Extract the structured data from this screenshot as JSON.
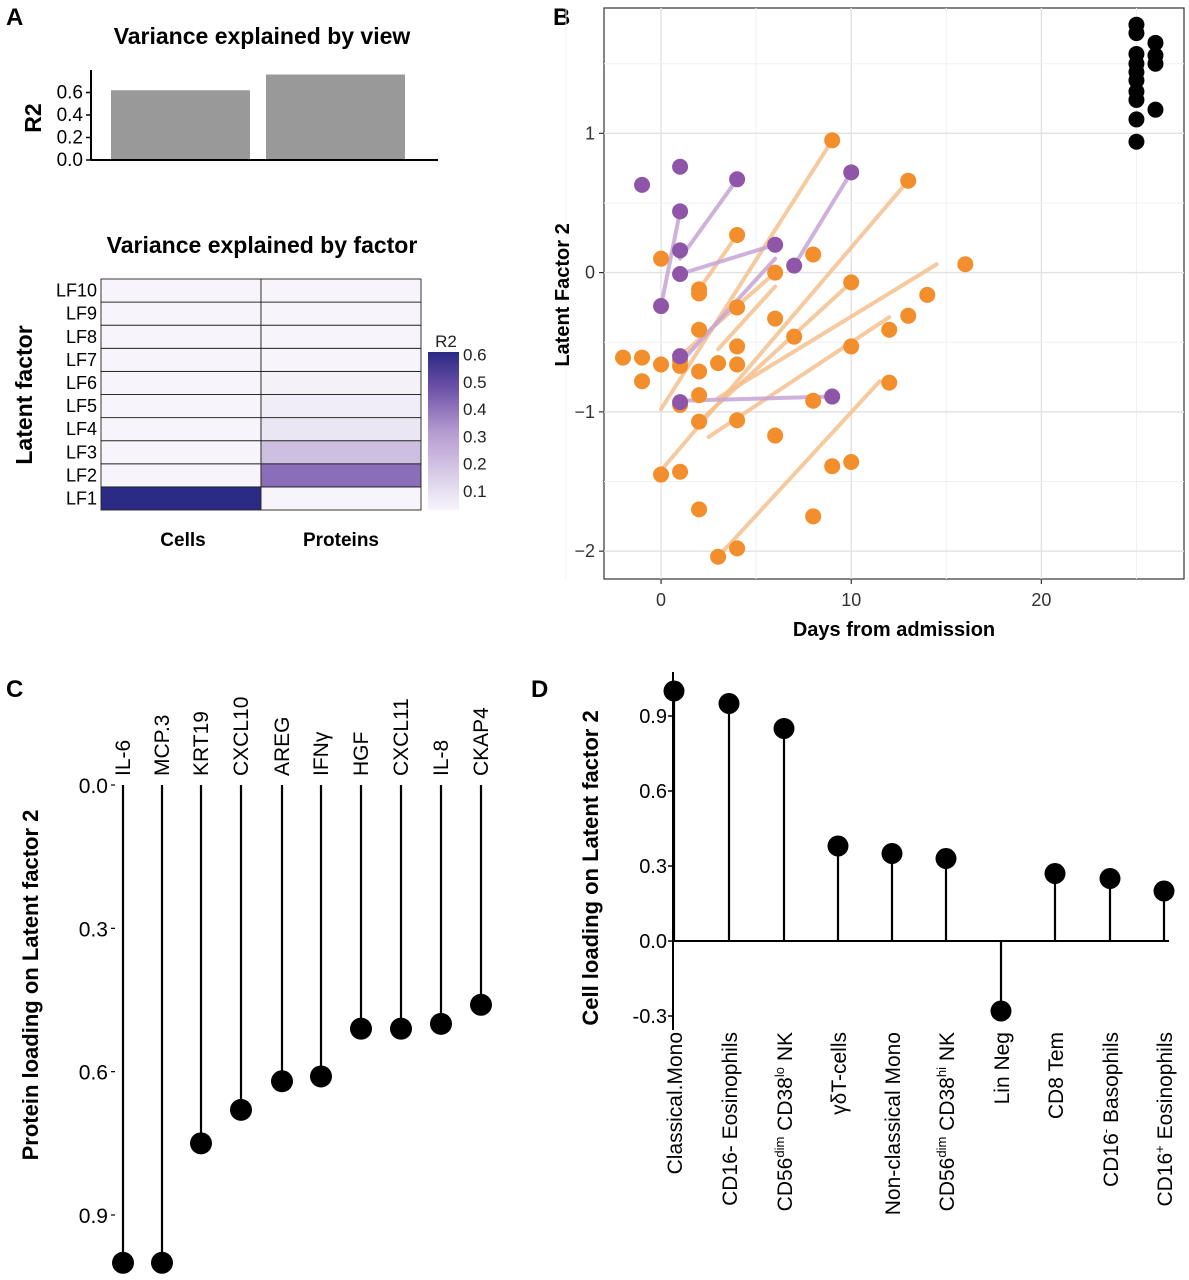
{
  "panels": {
    "a": "A",
    "b": "B",
    "c": "C",
    "d": "D"
  },
  "chart_data": [
    {
      "type": "bar",
      "title": "Variance explained by view",
      "ylabel": "R2",
      "categories": [
        "Cells",
        "Proteins"
      ],
      "values": [
        0.62,
        0.76
      ],
      "ylim": [
        0,
        0.8
      ],
      "yticks": [
        "0.0",
        "0.2",
        "0.4",
        "0.6"
      ],
      "colors": {
        "bar": "#999999"
      }
    },
    {
      "type": "heatmap",
      "title": "Variance explained by factor",
      "ylabel": "Latent factor",
      "x": [
        "Cells",
        "Proteins"
      ],
      "y": [
        "LF1",
        "LF2",
        "LF3",
        "LF4",
        "LF5",
        "LF6",
        "LF7",
        "LF8",
        "LF9",
        "LF10"
      ],
      "values": [
        [
          0.62,
          0.0
        ],
        [
          0.0,
          0.38
        ],
        [
          0.0,
          0.17
        ],
        [
          0.0,
          0.07
        ],
        [
          0.0,
          0.05
        ],
        [
          0.0,
          0.04
        ],
        [
          0.0,
          0.03
        ],
        [
          0.0,
          0.03
        ],
        [
          0.0,
          0.02
        ],
        [
          0.0,
          0.01
        ]
      ],
      "legend_title": "R2",
      "legend_ticks": [
        "0.1",
        "0.2",
        "0.3",
        "0.4",
        "0.5",
        "0.6"
      ],
      "scale": [
        0.03,
        0.62
      ],
      "colors": {
        "low": "#f7f5fb",
        "mid": "#8a6cb8",
        "high": "#2b2a85"
      }
    },
    {
      "type": "scatter",
      "xlabel": "Days from admission",
      "ylabel": "Latent Factor 2",
      "xlim": [
        -3,
        27.5
      ],
      "ylim": [
        -2.2,
        1.9
      ],
      "xticks": [
        "0",
        "10",
        "20"
      ],
      "yticks": [
        "−2",
        "−1",
        "0",
        "1"
      ],
      "grid": true,
      "colors": {
        "orange": "#f28e2b",
        "orange_line": "#f6c08f",
        "purple": "#8e55a8",
        "purple_line": "#c6a5d6",
        "black": "#000000"
      },
      "series": [
        {
          "color": "orange",
          "points": [
            [
              -2,
              -0.61
            ],
            [
              -1,
              -0.61
            ],
            [
              -1,
              -0.78
            ],
            [
              0,
              0.1
            ],
            [
              0,
              -0.66
            ],
            [
              0,
              -1.45
            ],
            [
              1,
              -0.63
            ],
            [
              1,
              -0.67
            ],
            [
              1,
              -0.95
            ],
            [
              1,
              -1.43
            ],
            [
              2,
              -0.12
            ],
            [
              2,
              -0.15
            ],
            [
              2,
              -0.41
            ],
            [
              2,
              -0.71
            ],
            [
              2,
              -0.88
            ],
            [
              2,
              -1.07
            ],
            [
              2,
              -1.7
            ],
            [
              3,
              -0.65
            ],
            [
              3,
              -2.04
            ],
            [
              4,
              0.27
            ],
            [
              4,
              -0.25
            ],
            [
              4,
              -0.53
            ],
            [
              4,
              -0.66
            ],
            [
              4,
              -1.06
            ],
            [
              4,
              -1.98
            ],
            [
              6,
              0.0
            ],
            [
              6,
              -0.33
            ],
            [
              6,
              -1.17
            ],
            [
              7,
              -0.46
            ],
            [
              8,
              0.13
            ],
            [
              8,
              -0.92
            ],
            [
              8,
              -1.75
            ],
            [
              9,
              0.95
            ],
            [
              9,
              -1.39
            ],
            [
              10,
              -0.07
            ],
            [
              10,
              -0.53
            ],
            [
              10,
              -1.36
            ],
            [
              12,
              -0.41
            ],
            [
              12,
              -0.79
            ],
            [
              13,
              0.66
            ],
            [
              13,
              -0.31
            ],
            [
              14,
              -0.16
            ],
            [
              16,
              0.06
            ]
          ]
        },
        {
          "color": "purple",
          "points": [
            [
              -1,
              0.63
            ],
            [
              0,
              -0.24
            ],
            [
              1,
              0.76
            ],
            [
              1,
              0.44
            ],
            [
              1,
              0.16
            ],
            [
              1,
              -0.01
            ],
            [
              1,
              -0.6
            ],
            [
              1,
              -0.93
            ],
            [
              4,
              0.67
            ],
            [
              6,
              0.2
            ],
            [
              7,
              0.05
            ],
            [
              9,
              -0.89
            ],
            [
              10,
              0.72
            ]
          ]
        },
        {
          "color": "black",
          "points": [
            [
              25,
              1.78
            ],
            [
              25,
              1.72
            ],
            [
              25,
              1.57
            ],
            [
              25,
              1.5
            ],
            [
              25,
              1.44
            ],
            [
              25,
              1.38
            ],
            [
              25,
              1.3
            ],
            [
              25,
              1.24
            ],
            [
              25,
              1.1
            ],
            [
              25,
              0.94
            ],
            [
              26,
              1.65
            ],
            [
              26,
              1.56
            ],
            [
              26,
              1.5
            ],
            [
              26,
              1.17
            ]
          ]
        }
      ],
      "trend_lines": [
        {
          "color": "orange_line",
          "from": [
            0,
            -0.98
          ],
          "to": [
            9,
            0.95
          ]
        },
        {
          "color": "orange_line",
          "from": [
            0,
            -1.42
          ],
          "to": [
            13,
            0.66
          ]
        },
        {
          "color": "orange_line",
          "from": [
            1,
            -0.6
          ],
          "to": [
            6,
            0.0
          ]
        },
        {
          "color": "orange_line",
          "from": [
            2,
            -0.12
          ],
          "to": [
            4,
            0.27
          ]
        },
        {
          "color": "orange_line",
          "from": [
            2,
            -1.07
          ],
          "to": [
            10,
            -0.07
          ]
        },
        {
          "color": "orange_line",
          "from": [
            3,
            -0.9
          ],
          "to": [
            14.5,
            0.06
          ]
        },
        {
          "color": "orange_line",
          "from": [
            2.5,
            -1.18
          ],
          "to": [
            12,
            -0.32
          ]
        },
        {
          "color": "orange_line",
          "from": [
            3,
            -2.04
          ],
          "to": [
            11.5,
            -0.78
          ]
        },
        {
          "color": "orange_line",
          "from": [
            3,
            -0.55
          ],
          "to": [
            6,
            -0.1
          ]
        },
        {
          "color": "purple_line",
          "from": [
            0,
            -0.24
          ],
          "to": [
            1,
            0.44
          ]
        },
        {
          "color": "purple_line",
          "from": [
            1,
            0.1
          ],
          "to": [
            4,
            0.67
          ]
        },
        {
          "color": "purple_line",
          "from": [
            1,
            -0.01
          ],
          "to": [
            6,
            0.2
          ]
        },
        {
          "color": "purple_line",
          "from": [
            1,
            -0.65
          ],
          "to": [
            6,
            0.1
          ]
        },
        {
          "color": "purple_line",
          "from": [
            1,
            -0.92
          ],
          "to": [
            9,
            -0.89
          ]
        },
        {
          "color": "purple_line",
          "from": [
            7,
            0.05
          ],
          "to": [
            10,
            0.72
          ]
        }
      ]
    },
    {
      "type": "lollipop",
      "ylabel": "Protein loading on Latent factor 2",
      "categories": [
        "IL-6",
        "MCP.3",
        "KRT19",
        "CXCL10",
        "AREG",
        "IFNγ",
        "HGF",
        "CXCL11",
        "IL-8",
        "CKAP4"
      ],
      "values": [
        1.0,
        1.0,
        0.75,
        0.68,
        0.62,
        0.61,
        0.51,
        0.51,
        0.5,
        0.46
      ],
      "ylim": [
        0,
        1.0
      ],
      "yticks": [
        "0.0",
        "0.3",
        "0.6",
        "0.9"
      ],
      "axis_inverted": true
    },
    {
      "type": "lollipop",
      "ylabel": "Cell loading on Latent factor 2",
      "categories": [
        [
          "Classical.Mono"
        ],
        [
          "CD16- Eosinophils"
        ],
        [
          "CD56",
          "dim",
          " CD38",
          "lo",
          " NK"
        ],
        [
          "γδT-cells"
        ],
        [
          "Non-classical Mono"
        ],
        [
          "CD56",
          "dim",
          " CD38",
          "hi",
          " NK"
        ],
        [
          "Lin Neg"
        ],
        [
          "CD8 Tem"
        ],
        [
          "CD16",
          "-",
          " Basophils"
        ],
        [
          "CD16",
          "+",
          " Eosinophils"
        ]
      ],
      "values": [
        1.0,
        0.95,
        0.85,
        0.38,
        0.35,
        0.33,
        -0.28,
        0.27,
        0.25,
        0.2
      ],
      "ylim": [
        -0.32,
        1.05
      ],
      "yticks": [
        "0.9",
        "0.6",
        "0.3",
        "0.0",
        "-0.3"
      ]
    }
  ]
}
